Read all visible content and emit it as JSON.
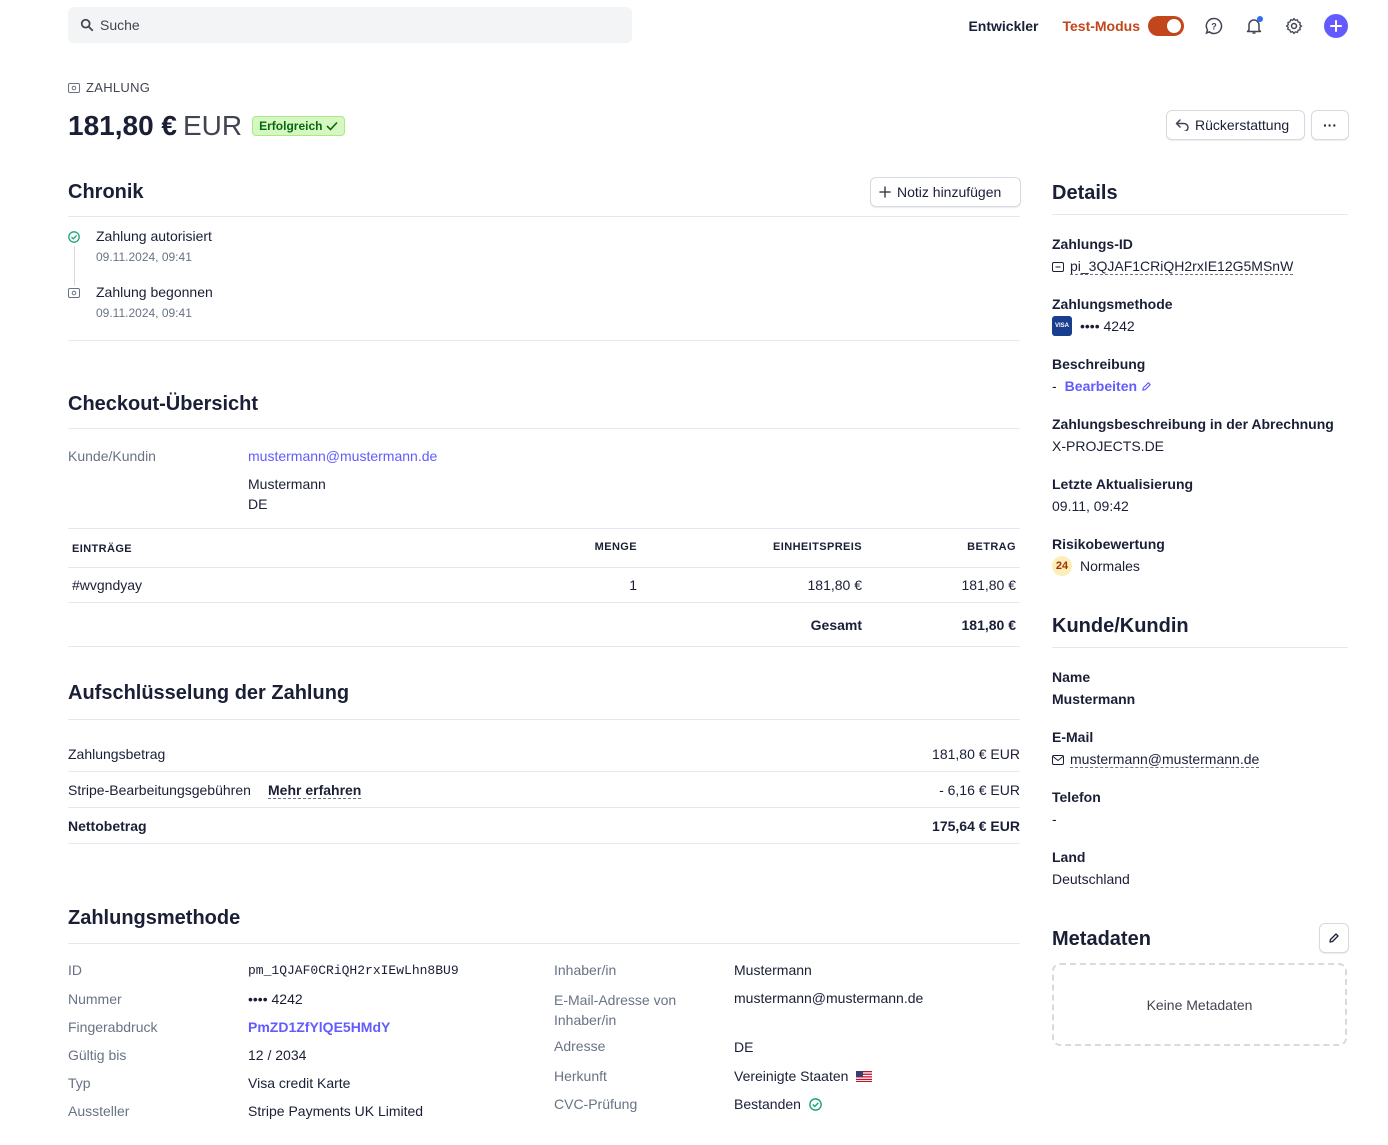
{
  "topbar": {
    "search_placeholder": "Suche",
    "developer_label": "Entwickler",
    "test_mode_label": "Test-Modus"
  },
  "header": {
    "kind": "ZAHLUNG",
    "amount": "181,80 €",
    "currency": "EUR",
    "status": "Erfolgreich",
    "refund_button": "Rückerstattung",
    "more_button": "···"
  },
  "timeline": {
    "title": "Chronik",
    "add_note": "Notiz hinzufügen",
    "events": [
      {
        "title": "Zahlung autorisiert",
        "date": "09.11.2024, 09:41"
      },
      {
        "title": "Zahlung begonnen",
        "date": "09.11.2024, 09:41"
      }
    ]
  },
  "checkout": {
    "title": "Checkout-Übersicht",
    "customer_label": "Kunde/Kundin",
    "customer_email": "mustermann@mustermann.de",
    "customer_name": "Mustermann",
    "customer_country": "DE",
    "columns": [
      "EINTRÄGE",
      "MENGE",
      "EINHEITSPREIS",
      "BETRAG"
    ],
    "rows": [
      {
        "item": "#wvgndyay",
        "qty": "1",
        "unit": "181,80 €",
        "amount": "181,80 €"
      }
    ],
    "total_label": "Gesamt",
    "total_value": "181,80 €"
  },
  "breakdown": {
    "title": "Aufschlüsselung der Zahlung",
    "payment_amount_label": "Zahlungsbetrag",
    "payment_amount_value": "181,80 € EUR",
    "fees_label": "Stripe-Bearbeitungsgebühren",
    "fees_link": "Mehr erfahren",
    "fees_value": "- 6,16 € EUR",
    "net_label": "Nettobetrag",
    "net_value": "175,64 € EUR"
  },
  "payment_method": {
    "title": "Zahlungsmethode",
    "left": [
      {
        "label": "ID",
        "value": "pm_1QJAF0CRiQH2rxIEwLhn8BU9"
      },
      {
        "label": "Nummer",
        "value": "•••• 4242"
      },
      {
        "label": "Fingerabdruck",
        "value": "PmZD1ZfYlQE5HMdY"
      },
      {
        "label": "Gültig bis",
        "value": "12 / 2034"
      },
      {
        "label": "Typ",
        "value": "Visa credit Karte"
      },
      {
        "label": "Aussteller",
        "value": "Stripe Payments UK Limited"
      }
    ],
    "right": [
      {
        "label": "Inhaber/in",
        "value": "Mustermann"
      },
      {
        "label": "E-Mail-Adresse von Inhaber/in",
        "value": "mustermann@mustermann.de"
      },
      {
        "label": "Adresse",
        "value": "DE"
      },
      {
        "label": "Herkunft",
        "value": "Vereinigte Staaten"
      },
      {
        "label": "CVC-Prüfung",
        "value": "Bestanden"
      }
    ]
  },
  "details": {
    "title": "Details",
    "payment_id_label": "Zahlungs-ID",
    "payment_id": "pi_3QJAF1CRiQH2rxIE12G5MSnW",
    "method_label": "Zahlungsmethode",
    "method_value": "•••• 4242",
    "visa_text": "VISA",
    "description_label": "Beschreibung",
    "description_dash": "-",
    "description_edit": "Bearbeiten",
    "statement_label": "Zahlungsbeschreibung in der Abrechnung",
    "statement_value": "X-PROJECTS.DE",
    "updated_label": "Letzte Aktualisierung",
    "updated_value": "09.11, 09:42",
    "risk_label": "Risikobewertung",
    "risk_score": "24",
    "risk_value": "Normales"
  },
  "customer": {
    "title": "Kunde/Kundin",
    "name_label": "Name",
    "name": "Mustermann",
    "email_label": "E-Mail",
    "email": "mustermann@mustermann.de",
    "phone_label": "Telefon",
    "phone": "-",
    "country_label": "Land",
    "country": "Deutschland"
  },
  "metadata": {
    "title": "Metadaten",
    "empty": "Keine Metadaten"
  },
  "colors": {
    "accent": "#635bff",
    "test_mode": "#c2461b",
    "success_bg": "#d7f7c2",
    "success_text": "#05690d"
  }
}
